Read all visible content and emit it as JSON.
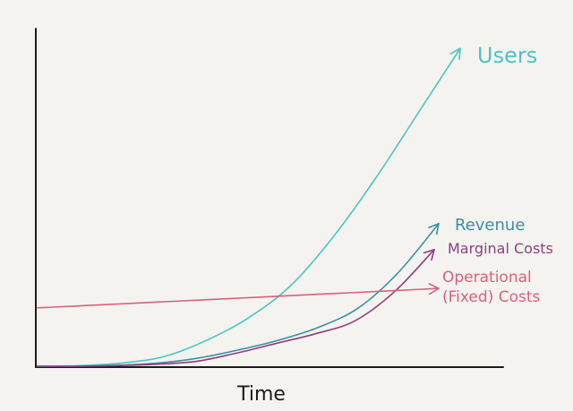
{
  "chart_data": {
    "type": "line",
    "xlabel": "Time",
    "ylabel": "",
    "grid": false,
    "legend": "inline labels at line ends",
    "x": [
      0,
      0.1,
      0.2,
      0.3,
      0.4,
      0.5,
      0.6,
      0.7,
      0.8,
      0.9,
      1.0
    ],
    "series": [
      {
        "name": "Users",
        "color": "#4fc3c3",
        "values": [
          0,
          0.002,
          0.01,
          0.03,
          0.08,
          0.15,
          0.25,
          0.4,
          0.58,
          0.78,
          0.98
        ]
      },
      {
        "name": "Revenue",
        "color": "#3c8fa0",
        "values": [
          0,
          0,
          0.003,
          0.01,
          0.025,
          0.05,
          0.08,
          0.12,
          0.18,
          0.29,
          0.44
        ]
      },
      {
        "name": "Marginal Costs",
        "color": "#8e3f7e",
        "values": [
          0,
          0,
          0.002,
          0.006,
          0.015,
          0.04,
          0.07,
          0.1,
          0.14,
          0.23,
          0.36
        ]
      },
      {
        "name": "Operational (Fixed) Costs",
        "label_lines": [
          "Operational",
          "(Fixed) Costs"
        ],
        "color": "#d9617d",
        "values": [
          0.18,
          0.186,
          0.192,
          0.198,
          0.204,
          0.21,
          0.216,
          0.222,
          0.228,
          0.234,
          0.24
        ]
      }
    ]
  }
}
